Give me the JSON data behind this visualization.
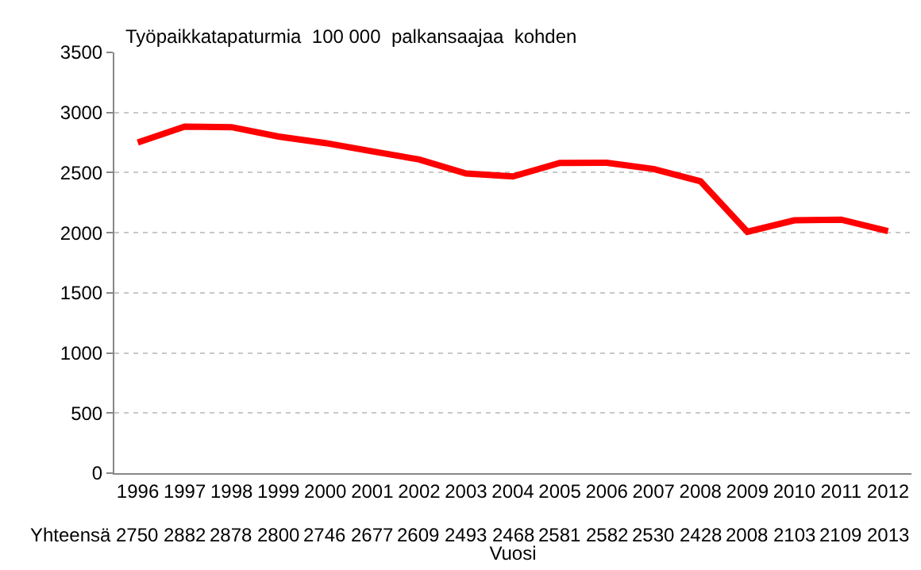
{
  "chart_data": {
    "type": "line",
    "title": "Työpaikkatapaturmia  100 000  palkansaajaa  kohden",
    "xlabel": "Vuosi",
    "categories": [
      "1996",
      "1997",
      "1998",
      "1999",
      "2000",
      "2001",
      "2002",
      "2003",
      "2004",
      "2005",
      "2006",
      "2007",
      "2008",
      "2009",
      "2010",
      "2011",
      "2012"
    ],
    "series": [
      {
        "name": "Yhteensä",
        "color": "#ff0000",
        "values": [
          2750,
          2882,
          2878,
          2800,
          2746,
          2677,
          2609,
          2493,
          2468,
          2581,
          2582,
          2530,
          2428,
          2008,
          2103,
          2109,
          2013
        ]
      }
    ],
    "ylim": [
      0,
      3500
    ],
    "yticks": [
      0,
      500,
      1000,
      1500,
      2000,
      2500,
      3000,
      3500
    ],
    "grid": "y",
    "legend": false,
    "marker": "none",
    "line_style": "solid",
    "data_labels": true
  }
}
